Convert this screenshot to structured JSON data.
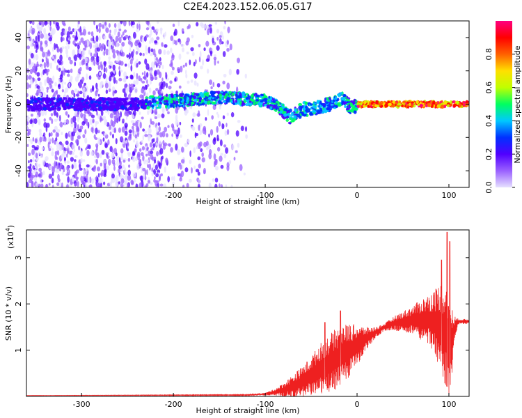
{
  "title": "C2E4.2023.152.06.05.G17",
  "colors": {
    "snr_line": "#ee2020",
    "axis": "#000000",
    "background": "#ffffff"
  },
  "chart_data": [
    {
      "type": "heatmap",
      "xlabel": "Height of straight line (km)",
      "ylabel": "Frequency (Hz)",
      "xlim": [
        -360,
        122
      ],
      "ylim": [
        -50,
        50
      ],
      "x_ticks": [
        -300,
        -200,
        -100,
        0,
        100
      ],
      "y_ticks": [
        -40,
        -20,
        0,
        20,
        40
      ],
      "colorbar": {
        "label": "Normalized spectral amplitude",
        "range": [
          0,
          1
        ],
        "ticks": [
          "0.0",
          "0.2",
          "0.4",
          "0.6",
          "0.8"
        ],
        "tick_values": [
          0,
          0.2,
          0.4,
          0.6,
          0.8
        ],
        "colormap": [
          "#e6e0ff",
          "#9a60ff",
          "#5000ff",
          "#0030ff",
          "#00c8ff",
          "#00ff60",
          "#c0ff00",
          "#ffe000",
          "#ff6000",
          "#ff0000",
          "#ff0080"
        ]
      },
      "ridge": {
        "x": [
          -360,
          -300,
          -250,
          -200,
          -150,
          -120,
          -100,
          -90,
          -80,
          -72,
          -60,
          -50,
          -40,
          -30,
          -20,
          -15,
          -12,
          -8,
          -5,
          0,
          10,
          30,
          50,
          70,
          90,
          100,
          110,
          122
        ],
        "freq": [
          0,
          0,
          0,
          2,
          4,
          3,
          2,
          0,
          -4,
          -8,
          -3,
          -3,
          -2,
          0,
          2,
          4,
          2,
          -2,
          -2,
          0,
          0,
          0,
          0,
          0,
          0,
          0,
          0,
          0
        ]
      }
    },
    {
      "type": "line",
      "xlabel": "Height of straight line (km)",
      "ylabel": "SNR (10 * v/v)",
      "y_multiplier": "(x10",
      "y_multiplier_exp": "4",
      "multiplier_close": ")",
      "xlim": [
        -360,
        122
      ],
      "ylim": [
        0,
        3.6
      ],
      "x_ticks": [
        -300,
        -200,
        -100,
        0,
        100
      ],
      "y_ticks": [
        1,
        2,
        3
      ],
      "envelope": {
        "x": [
          -360,
          -120,
          -100,
          -90,
          -80,
          -70,
          -60,
          -50,
          -40,
          -30,
          -20,
          -10,
          0,
          10,
          20,
          30,
          40,
          50,
          60,
          70,
          80,
          90,
          95,
          100,
          103,
          106,
          110,
          122
        ],
        "mean": [
          0.02,
          0.03,
          0.05,
          0.09,
          0.14,
          0.22,
          0.32,
          0.45,
          0.6,
          0.72,
          0.85,
          0.98,
          1.1,
          1.25,
          1.38,
          1.5,
          1.58,
          1.62,
          1.65,
          1.66,
          1.64,
          1.55,
          1.4,
          1.2,
          1.1,
          1.45,
          1.62,
          1.62
        ],
        "spread": [
          0.0,
          0.01,
          0.03,
          0.07,
          0.15,
          0.25,
          0.32,
          0.42,
          0.55,
          0.62,
          0.68,
          0.6,
          0.45,
          0.25,
          0.12,
          0.08,
          0.15,
          0.22,
          0.3,
          0.45,
          0.6,
          0.9,
          1.1,
          1.2,
          0.9,
          0.3,
          0.06,
          0.05
        ],
        "peaks": [
          {
            "x": 98,
            "y": 3.55
          },
          {
            "x": 101,
            "y": 3.35
          },
          {
            "x": 92,
            "y": 2.95
          },
          {
            "x": -18,
            "y": 1.85
          },
          {
            "x": -35,
            "y": 1.6
          }
        ]
      }
    }
  ]
}
